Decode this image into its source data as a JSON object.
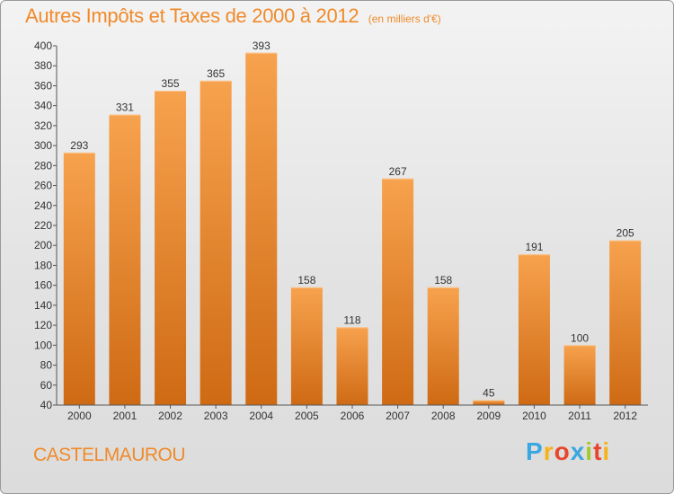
{
  "chart_data": {
    "type": "bar",
    "title": "Autres Impôts et Taxes de 2000 à 2012",
    "subtitle": "(en milliers d'€)",
    "categories": [
      "2000",
      "2001",
      "2002",
      "2003",
      "2004",
      "2005",
      "2006",
      "2007",
      "2008",
      "2009",
      "2010",
      "2011",
      "2012"
    ],
    "values": [
      293,
      331,
      355,
      365,
      393,
      158,
      118,
      267,
      158,
      45,
      191,
      100,
      205
    ],
    "ylim": [
      40,
      400
    ],
    "yticks": [
      40,
      60,
      80,
      100,
      120,
      140,
      160,
      180,
      200,
      220,
      240,
      260,
      280,
      300,
      320,
      340,
      360,
      380,
      400
    ],
    "xlabel": "",
    "ylabel": "",
    "grid": false,
    "bar_color": "#f0922e"
  },
  "location": "CASTELMAUROU",
  "logo": {
    "letters": [
      "P",
      "r",
      "o",
      "x",
      "i",
      "t",
      "i"
    ],
    "colors": [
      "#3aa7e0",
      "#f7b21a",
      "#e8462c",
      "#3aa7e0",
      "#a5c82c",
      "#e8462c",
      "#f7b21a"
    ]
  }
}
